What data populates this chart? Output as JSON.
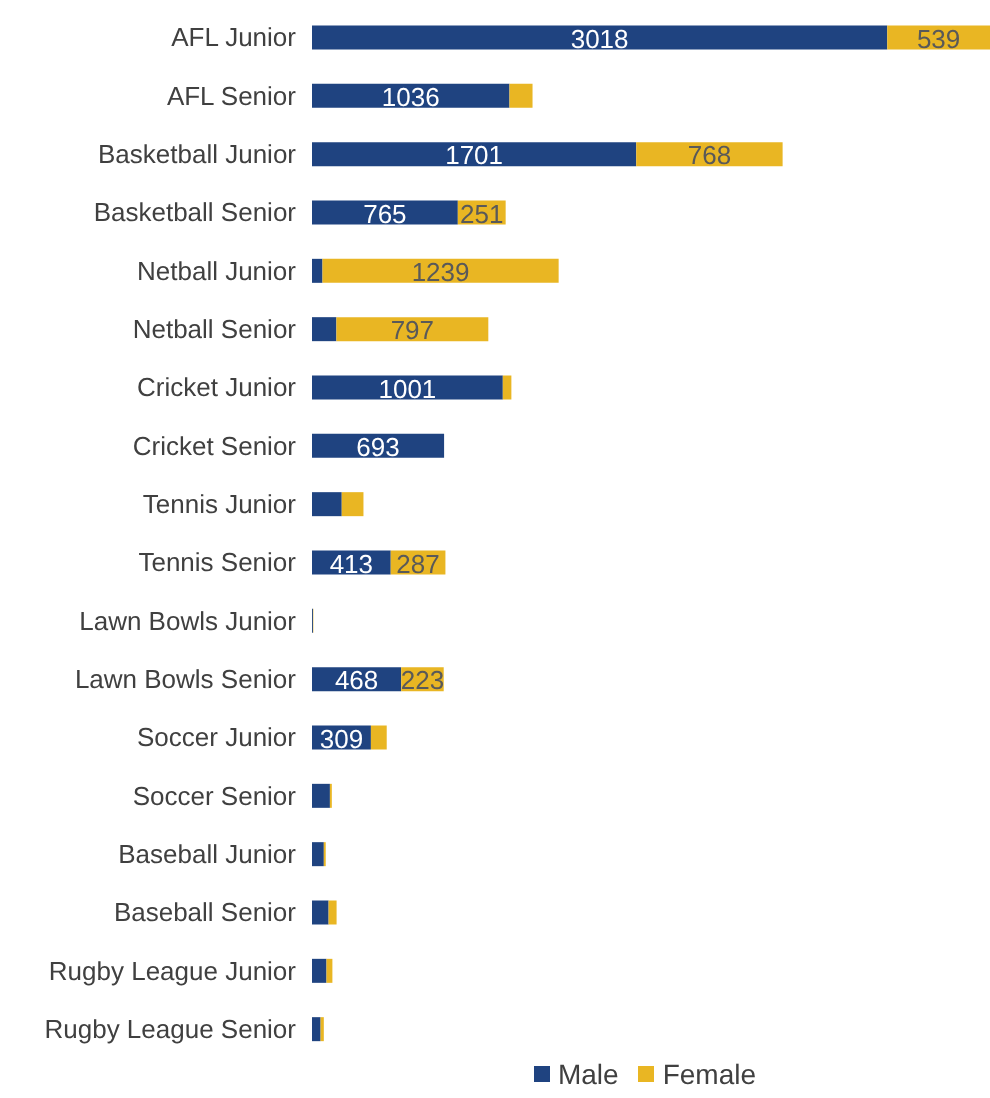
{
  "chart_data": {
    "type": "bar",
    "orientation": "horizontal",
    "stacked": true,
    "legend": "bottom",
    "categories": [
      "AFL Junior",
      "AFL Senior",
      "Basketball Junior",
      "Basketball Senior",
      "Netball Junior",
      "Netball Senior",
      "Cricket Junior",
      "Cricket Senior",
      "Tennis Junior",
      "Tennis Senior",
      "Lawn Bowls Junior",
      "Lawn Bowls Senior",
      "Soccer Junior",
      "Soccer Senior",
      "Baseball Junior",
      "Baseball Senior",
      "Rugby League Junior",
      "Rugby League Senior"
    ],
    "series": [
      {
        "name": "Male",
        "color": "#1f4380",
        "values": [
          3018,
          1036,
          1701,
          765,
          55,
          128,
          1001,
          693,
          156,
          413,
          5,
          468,
          309,
          94,
          62,
          87,
          76,
          45
        ],
        "value_labels": [
          "3018",
          "1036",
          "1701",
          "765",
          null,
          null,
          "1001",
          "693",
          null,
          "413",
          null,
          "468",
          "309",
          null,
          null,
          null,
          null,
          null
        ]
      },
      {
        "name": "Female",
        "color": "#e9b623",
        "values": [
          539,
          121,
          768,
          251,
          1239,
          797,
          45,
          0,
          114,
          287,
          2,
          223,
          83,
          10,
          10,
          42,
          31,
          17
        ],
        "value_labels": [
          "539",
          null,
          "768",
          "251",
          "1239",
          "797",
          null,
          null,
          null,
          "287",
          null,
          "223",
          null,
          null,
          null,
          null,
          null,
          null
        ]
      }
    ]
  }
}
